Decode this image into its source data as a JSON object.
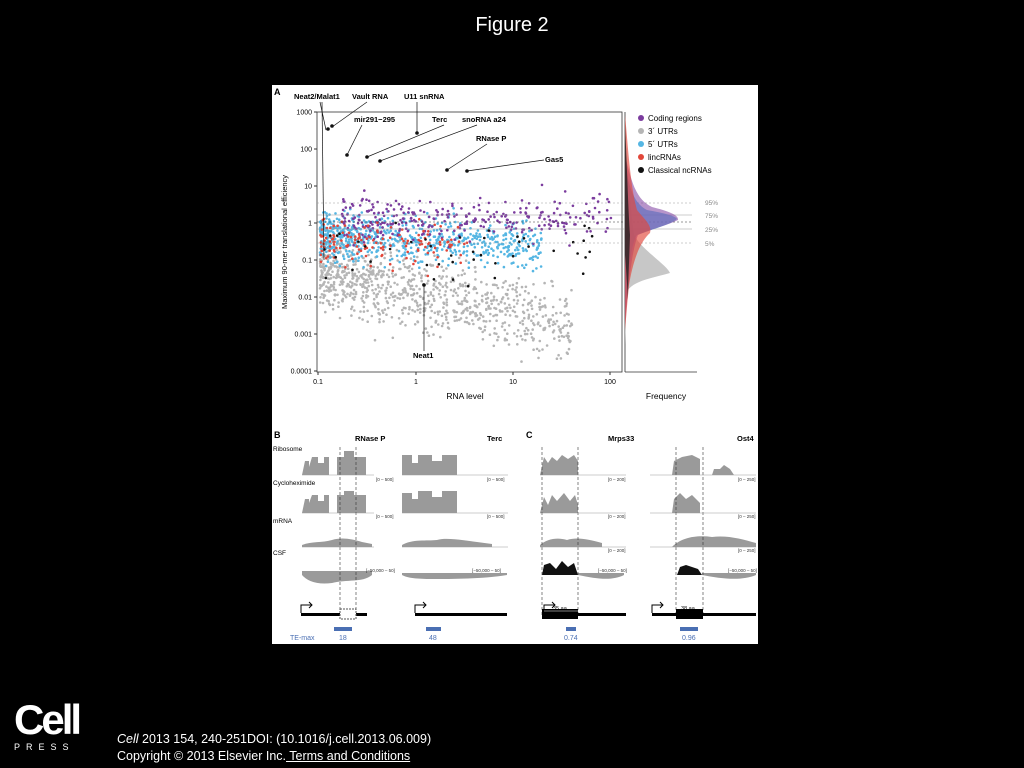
{
  "slide_title": "Figure 2",
  "panel_a": {
    "label": "A",
    "y_axis_label": "Maximum 90-mer translational efficiency",
    "x_axis_label": "RNA level",
    "y_ticks": [
      "1000",
      "100",
      "10",
      "1",
      "0.1",
      "0.01",
      "0.001",
      "0.0001"
    ],
    "x_ticks": [
      "0.1",
      "1",
      "10",
      "100"
    ],
    "density_x_label": "Frequency",
    "legend": [
      {
        "label": "Coding regions",
        "color": "#7b3c9e"
      },
      {
        "label": "3´ UTRs",
        "color": "#b5b5b5"
      },
      {
        "label": "5´ UTRs",
        "color": "#55b6e3"
      },
      {
        "label": "lincRNAs",
        "color": "#e2473a"
      },
      {
        "label": "Classical ncRNAs",
        "color": "#111111"
      }
    ],
    "percentiles": [
      "95%",
      "75%",
      "25%",
      "5%"
    ],
    "annotations": [
      "Neat2/Malat1",
      "Vault RNA",
      "U11 snRNA",
      "mir291−295",
      "Terc",
      "snoRNA a24",
      "RNase P",
      "Gas5",
      "Neat1"
    ]
  },
  "panel_b": {
    "label": "B",
    "gene_titles": [
      "RNase P",
      "Terc"
    ],
    "track_labels": [
      "Ribosome",
      "Cycloheximide",
      "mRNA",
      "CSF"
    ],
    "ranges_left": [
      "[0 – 500]",
      "[0 – 500]",
      "[−50,000 – 50]"
    ],
    "ranges_right": [
      "[0 – 500]",
      "[0 – 500]",
      "[−50,000 – 50]"
    ],
    "te_label": "TE-max",
    "te_values": [
      "18",
      "48"
    ]
  },
  "panel_c": {
    "label": "C",
    "gene_titles": [
      "Mrps33",
      "Ost4"
    ],
    "ranges_left": [
      "[0 – 200]",
      "[0 – 200]",
      "[0 – 200]",
      "[−50,000 – 50]"
    ],
    "ranges_right": [
      "[0 – 250]",
      "[0 – 250]",
      "[0 – 250]",
      "[−50,000 – 50]"
    ],
    "orf_labels": [
      "35 aa",
      "38 aa"
    ],
    "te_values": [
      "0.74",
      "0.96"
    ]
  },
  "logo": {
    "brand": "Cell",
    "press": "PRESS"
  },
  "citation": {
    "journal": "Cell",
    "reference": " 2013 154, 240-251DOI: (10.1016/j.cell.2013.06.009)",
    "copyright": "Copyright © 2013 Elsevier Inc.",
    "terms_link": " Terms and Conditions"
  }
}
